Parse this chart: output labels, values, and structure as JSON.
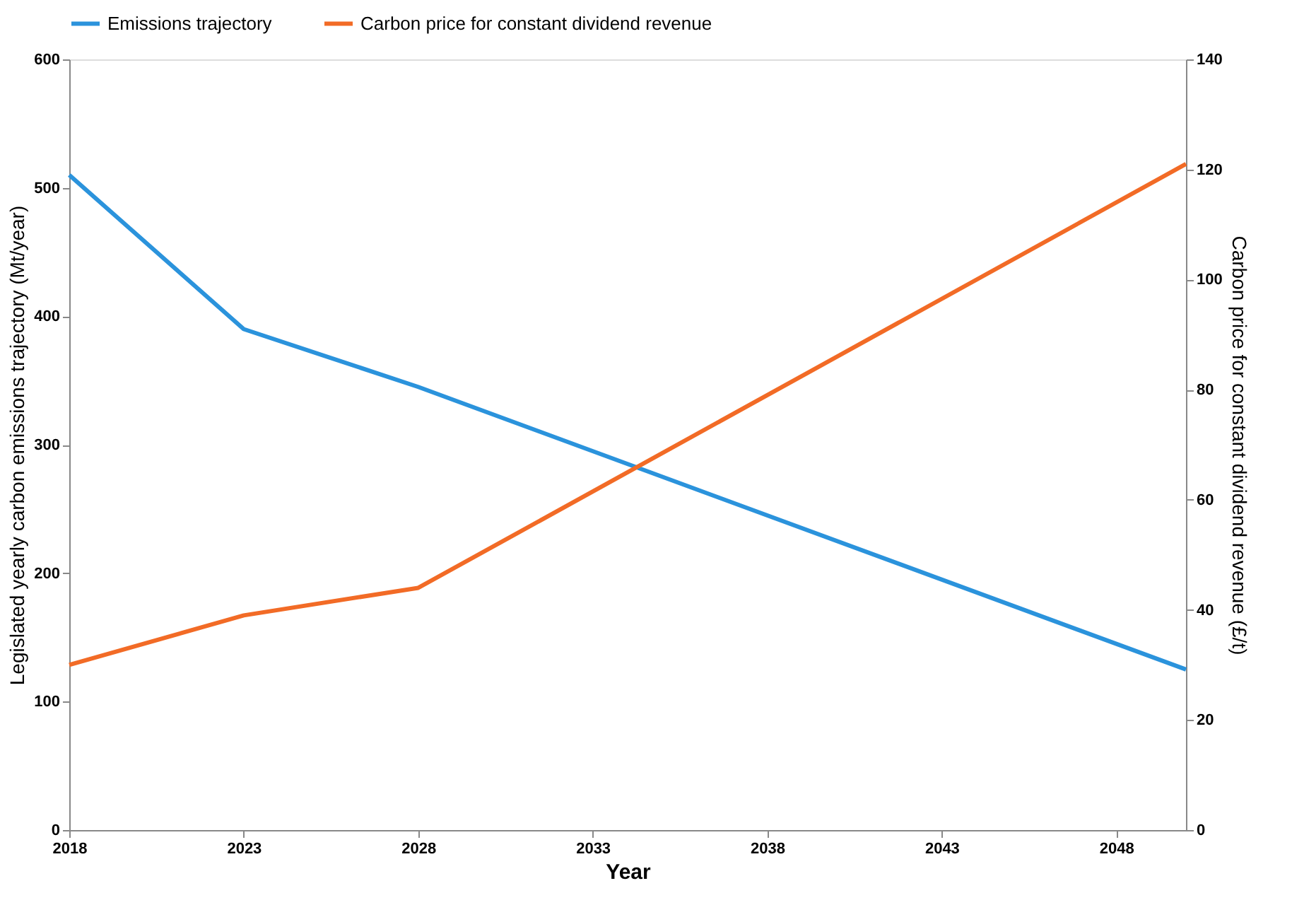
{
  "chart_data": {
    "type": "line",
    "xlabel": "Year",
    "ylabel": "Legislated yearly carbon emissions trajectory (Mt/year)",
    "y2label": "Carbon price for constant dividend revenue (£/t)",
    "xlim": [
      2018,
      2050
    ],
    "xticks": [
      2018,
      2023,
      2028,
      2033,
      2038,
      2043,
      2048
    ],
    "ylim": [
      0,
      600
    ],
    "yticks": [
      0,
      100,
      200,
      300,
      400,
      500,
      600
    ],
    "y2lim": [
      0,
      140
    ],
    "y2ticks": [
      0,
      20,
      40,
      60,
      80,
      100,
      120,
      140
    ],
    "grid": false,
    "legend": "top",
    "marker": "none",
    "line_style": "solid",
    "series": [
      {
        "name": "Emissions trajectory",
        "color": "#2b93dc",
        "x": [
          2018,
          2023,
          2028,
          2050
        ],
        "values": [
          510,
          390,
          345,
          125
        ]
      },
      {
        "name": "Carbon price for constant dividend revenue",
        "color": "#f26b26",
        "axis": "y2",
        "x": [
          2018,
          2023,
          2028,
          2050
        ],
        "values": [
          30,
          39,
          44,
          121
        ]
      }
    ]
  }
}
